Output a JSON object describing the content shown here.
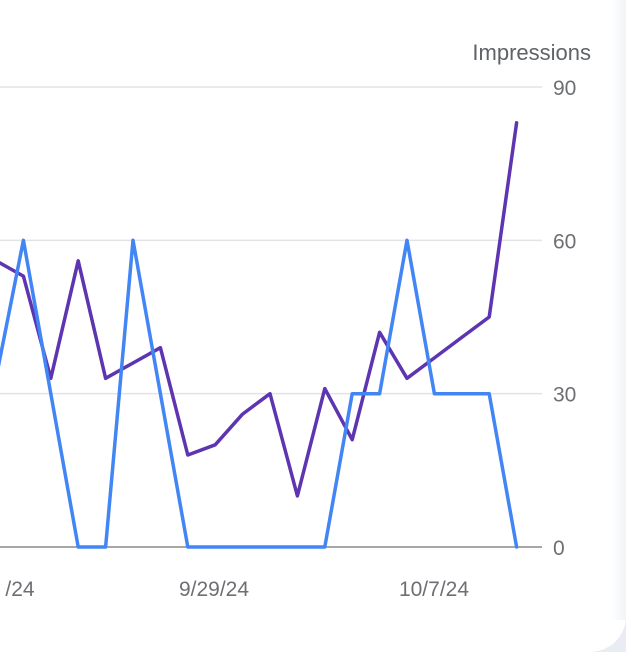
{
  "chart_data": {
    "type": "line",
    "title": "",
    "xlabel": "",
    "ylabel": "Impressions",
    "ylim": [
      0,
      90
    ],
    "yticks": [
      0,
      30,
      60,
      90
    ],
    "grid": true,
    "x_tick_labels": [
      "/24",
      "9/29/24",
      "10/7/24"
    ],
    "series": [
      {
        "color": "#5e35b1",
        "values": [
          56,
          53,
          33,
          56,
          33,
          36,
          39,
          18,
          20,
          26,
          30,
          10,
          31,
          21,
          42,
          33,
          37,
          41,
          45,
          83
        ]
      },
      {
        "color": "#4285f4",
        "values": [
          33,
          60,
          30,
          0,
          0,
          60,
          30,
          0,
          0,
          0,
          0,
          0,
          0,
          30,
          30,
          60,
          30,
          30,
          30,
          0
        ]
      }
    ]
  }
}
